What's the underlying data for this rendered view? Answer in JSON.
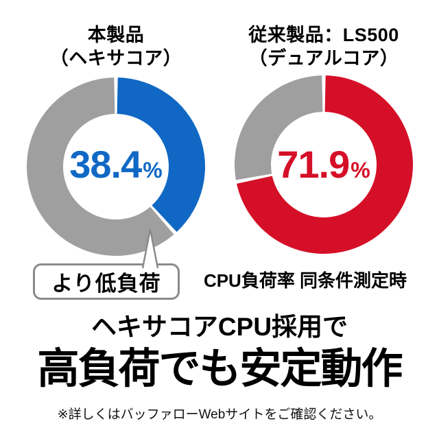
{
  "colors": {
    "blue": "#1068c4",
    "red": "#d50f27",
    "gray": "#9f9f9f",
    "callout_border": "#8a8a8a",
    "text": "#000000"
  },
  "charts": [
    {
      "title_line1": "本製品",
      "title_line2": "（ヘキサコア）",
      "value": 38.4,
      "value_text": "38.4",
      "unit": "%",
      "value_color": "#1068c4",
      "rest_color": "#9f9f9f"
    },
    {
      "title_line1": "従来製品：LS500",
      "title_line2": "（デュアルコア）",
      "value": 71.9,
      "value_text": "71.9",
      "unit": "%",
      "value_color": "#d50f27",
      "rest_color": "#9f9f9f"
    }
  ],
  "callout": {
    "label": "より低負荷"
  },
  "caption": "CPU負荷率 同条件測定時",
  "headline": {
    "line1": "ヘキサコアCPU採用で",
    "line2": "高負荷でも安定動作"
  },
  "footnote": "※詳しくはバッファローWebサイトをご確認ください。",
  "chart_data": [
    {
      "type": "pie",
      "subtype": "donut",
      "title": "本製品（ヘキサコア）",
      "categories": [
        "CPU負荷率",
        "残り"
      ],
      "values": [
        38.4,
        61.6
      ],
      "unit": "%",
      "colors": [
        "#1068c4",
        "#9f9f9f"
      ],
      "center_label": "38.4%",
      "start_angle_deg": 0,
      "direction": "clockwise",
      "annotation": "より低負荷"
    },
    {
      "type": "pie",
      "subtype": "donut",
      "title": "従来製品：LS500（デュアルコア）",
      "categories": [
        "CPU負荷率",
        "残り"
      ],
      "values": [
        71.9,
        28.1
      ],
      "unit": "%",
      "colors": [
        "#d50f27",
        "#9f9f9f"
      ],
      "center_label": "71.9%",
      "start_angle_deg": 0,
      "direction": "clockwise",
      "caption": "CPU負荷率 同条件測定時"
    }
  ]
}
